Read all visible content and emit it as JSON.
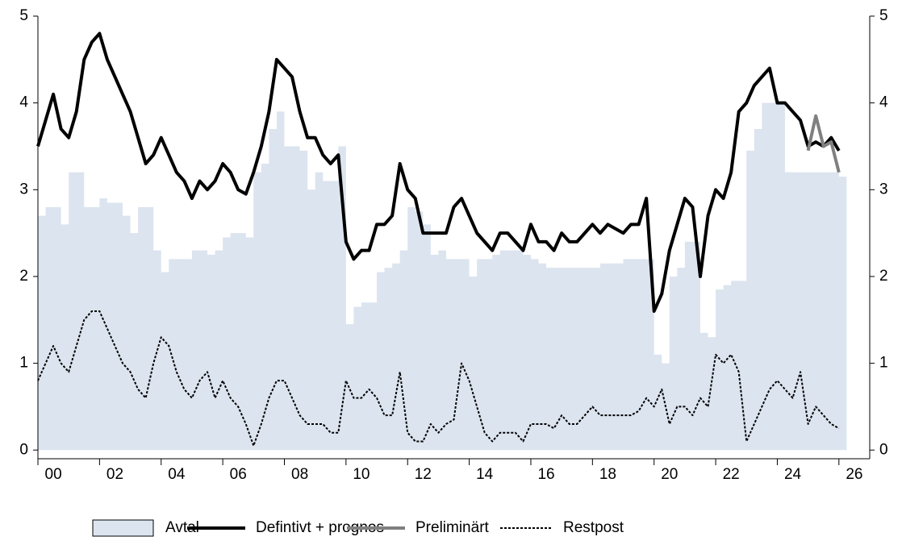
{
  "chart_data": {
    "type": "line",
    "x": [
      2000,
      2000.25,
      2000.5,
      2000.75,
      2001,
      2001.25,
      2001.5,
      2001.75,
      2002,
      2002.25,
      2002.5,
      2002.75,
      2003,
      2003.25,
      2003.5,
      2003.75,
      2004,
      2004.25,
      2004.5,
      2004.75,
      2005,
      2005.25,
      2005.5,
      2005.75,
      2006,
      2006.25,
      2006.5,
      2006.75,
      2007,
      2007.25,
      2007.5,
      2007.75,
      2008,
      2008.25,
      2008.5,
      2008.75,
      2009,
      2009.25,
      2009.5,
      2009.75,
      2010,
      2010.25,
      2010.5,
      2010.75,
      2011,
      2011.25,
      2011.5,
      2011.75,
      2012,
      2012.25,
      2012.5,
      2012.75,
      2013,
      2013.25,
      2013.5,
      2013.75,
      2014,
      2014.25,
      2014.5,
      2014.75,
      2015,
      2015.25,
      2015.5,
      2015.75,
      2016,
      2016.25,
      2016.5,
      2016.75,
      2017,
      2017.25,
      2017.5,
      2017.75,
      2018,
      2018.25,
      2018.5,
      2018.75,
      2019,
      2019.25,
      2019.5,
      2019.75,
      2020,
      2020.25,
      2020.5,
      2020.75,
      2021,
      2021.25,
      2021.5,
      2021.75,
      2022,
      2022.25,
      2022.5,
      2022.75,
      2023,
      2023.25,
      2023.5,
      2023.75,
      2024,
      2024.25,
      2024.5,
      2024.75,
      2025,
      2025.25,
      2025.5,
      2025.75,
      2026
    ],
    "series": [
      {
        "name": "Avtal",
        "type": "area",
        "color": "#dce4ef",
        "values": [
          2.7,
          2.8,
          2.8,
          2.6,
          3.2,
          3.2,
          2.8,
          2.8,
          2.9,
          2.85,
          2.85,
          2.7,
          2.5,
          2.8,
          2.8,
          2.3,
          2.05,
          2.2,
          2.2,
          2.2,
          2.3,
          2.3,
          2.25,
          2.3,
          2.45,
          2.5,
          2.5,
          2.45,
          3.2,
          3.3,
          3.7,
          3.9,
          3.5,
          3.5,
          3.45,
          3.0,
          3.2,
          3.1,
          3.1,
          3.5,
          1.45,
          1.65,
          1.7,
          1.7,
          2.05,
          2.1,
          2.15,
          2.3,
          2.8,
          2.75,
          2.6,
          2.25,
          2.3,
          2.2,
          2.2,
          2.2,
          2.0,
          2.2,
          2.2,
          2.25,
          2.3,
          2.3,
          2.3,
          2.25,
          2.2,
          2.15,
          2.1,
          2.1,
          2.1,
          2.1,
          2.1,
          2.1,
          2.1,
          2.15,
          2.15,
          2.15,
          2.2,
          2.2,
          2.2,
          2.2,
          1.1,
          1.0,
          2.0,
          2.1,
          2.4,
          2.4,
          1.35,
          1.3,
          1.85,
          1.9,
          1.95,
          1.95,
          3.45,
          3.7,
          4.0,
          4.0,
          4.0,
          3.2,
          3.2,
          3.2,
          3.2,
          3.2,
          3.2,
          3.2,
          3.15
        ]
      },
      {
        "name": "Defintivt + prognos",
        "type": "line",
        "color": "#000000",
        "width": 4,
        "values": [
          3.5,
          3.8,
          4.1,
          3.7,
          3.6,
          3.9,
          4.5,
          4.7,
          4.8,
          4.5,
          4.3,
          4.1,
          3.9,
          3.6,
          3.3,
          3.4,
          3.6,
          3.4,
          3.2,
          3.1,
          2.9,
          3.1,
          3.0,
          3.1,
          3.3,
          3.2,
          3.0,
          2.95,
          3.2,
          3.5,
          3.9,
          4.5,
          4.4,
          4.3,
          3.9,
          3.6,
          3.6,
          3.4,
          3.3,
          3.4,
          2.4,
          2.2,
          2.3,
          2.3,
          2.6,
          2.6,
          2.7,
          3.3,
          3.0,
          2.9,
          2.5,
          2.5,
          2.5,
          2.5,
          2.8,
          2.9,
          2.7,
          2.5,
          2.4,
          2.3,
          2.5,
          2.5,
          2.4,
          2.3,
          2.6,
          2.4,
          2.4,
          2.3,
          2.5,
          2.4,
          2.4,
          2.5,
          2.6,
          2.5,
          2.6,
          2.55,
          2.5,
          2.6,
          2.6,
          2.9,
          1.6,
          1.8,
          2.3,
          2.6,
          2.9,
          2.8,
          2.0,
          2.7,
          3.0,
          2.9,
          3.2,
          3.9,
          4.0,
          4.2,
          4.3,
          4.4,
          4.0,
          4.0,
          3.9,
          3.8,
          3.5,
          3.55,
          3.5,
          3.6,
          3.45
        ]
      },
      {
        "name": "Preliminärt",
        "type": "line",
        "color": "#808080",
        "width": 4,
        "x": [
          2025,
          2025.25,
          2025.5,
          2025.75,
          2026
        ],
        "values": [
          3.45,
          3.85,
          3.5,
          3.55,
          3.2
        ]
      },
      {
        "name": "Restpost",
        "type": "line",
        "color": "#000000",
        "width": 2,
        "dash": true,
        "values": [
          0.8,
          1.0,
          1.2,
          1.0,
          0.9,
          1.2,
          1.5,
          1.6,
          1.6,
          1.4,
          1.2,
          1.0,
          0.9,
          0.7,
          0.6,
          1.0,
          1.3,
          1.2,
          0.9,
          0.7,
          0.6,
          0.8,
          0.9,
          0.6,
          0.8,
          0.6,
          0.5,
          0.3,
          0.05,
          0.3,
          0.6,
          0.8,
          0.8,
          0.6,
          0.4,
          0.3,
          0.3,
          0.3,
          0.2,
          0.2,
          0.8,
          0.6,
          0.6,
          0.7,
          0.6,
          0.4,
          0.4,
          0.9,
          0.2,
          0.1,
          0.1,
          0.3,
          0.2,
          0.3,
          0.35,
          1.0,
          0.8,
          0.5,
          0.2,
          0.1,
          0.2,
          0.2,
          0.2,
          0.1,
          0.3,
          0.3,
          0.3,
          0.25,
          0.4,
          0.3,
          0.3,
          0.4,
          0.5,
          0.4,
          0.4,
          0.4,
          0.4,
          0.4,
          0.45,
          0.6,
          0.5,
          0.7,
          0.3,
          0.5,
          0.5,
          0.4,
          0.6,
          0.5,
          1.1,
          1.0,
          1.1,
          0.9,
          0.1,
          0.3,
          0.5,
          0.7,
          0.8,
          0.7,
          0.6,
          0.9,
          0.3,
          0.5,
          0.4,
          0.3,
          0.25
        ]
      }
    ],
    "xlim": [
      2000,
      2027
    ],
    "xticks": [
      {
        "value": 2000,
        "label": "00"
      },
      {
        "value": 2002,
        "label": "02"
      },
      {
        "value": 2004,
        "label": "04"
      },
      {
        "value": 2006,
        "label": "06"
      },
      {
        "value": 2008,
        "label": "08"
      },
      {
        "value": 2010,
        "label": "10"
      },
      {
        "value": 2012,
        "label": "12"
      },
      {
        "value": 2014,
        "label": "14"
      },
      {
        "value": 2016,
        "label": "16"
      },
      {
        "value": 2018,
        "label": "18"
      },
      {
        "value": 2020,
        "label": "20"
      },
      {
        "value": 2022,
        "label": "22"
      },
      {
        "value": 2024,
        "label": "24"
      },
      {
        "value": 2026,
        "label": "26"
      }
    ],
    "ylim": [
      -0.1,
      5
    ],
    "yticks": [
      0,
      1,
      2,
      3,
      4,
      5
    ],
    "y2lim": [
      -0.1,
      5
    ],
    "y2ticks": [
      0,
      1,
      2,
      3,
      4,
      5
    ],
    "legend": "bottom"
  }
}
